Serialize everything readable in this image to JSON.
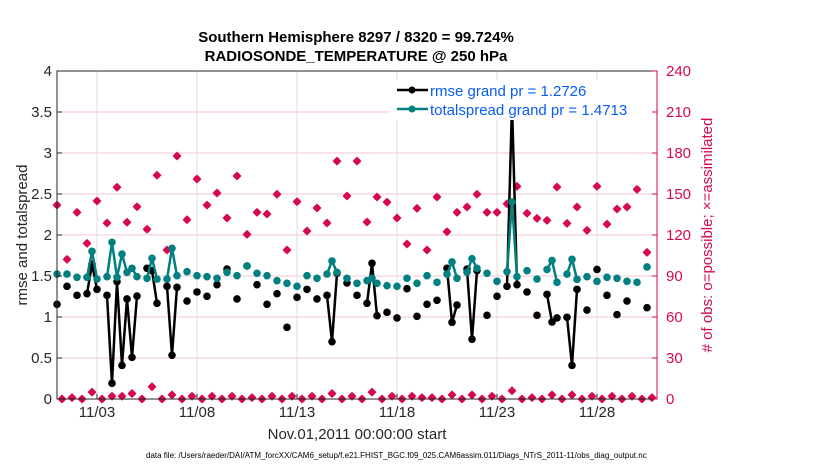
{
  "chart_data": {
    "type": "line",
    "title": [
      "Southern Hemisphere 8297 / 8320 = 99.724%",
      "RADIOSONDE_TEMPERATURE @ 250 hPa"
    ],
    "xlabel": "Nov.01,2011 00:00:00 start",
    "ylabel": "rmse and totalspread",
    "y2label": "# of obs: o=possible; ×=assimilated",
    "footer": "data file: /Users/raeder/DAI/ATM_forcXX/CAM6_setup/f.e21.FHIST_BGC.f09_025.CAM6assim.011/Diags_NTrS_2011-11/obs_diag_output.nc",
    "xlim_days": [
      0,
      30
    ],
    "ylim": [
      0,
      4
    ],
    "y2lim": [
      0,
      240
    ],
    "xticks": [
      {
        "day": 2,
        "label": "11/03"
      },
      {
        "day": 7,
        "label": "11/08"
      },
      {
        "day": 12,
        "label": "11/13"
      },
      {
        "day": 17,
        "label": "11/18"
      },
      {
        "day": 22,
        "label": "11/23"
      },
      {
        "day": 27,
        "label": "11/28"
      }
    ],
    "yticks": [
      "0",
      "0.5",
      "1",
      "1.5",
      "2",
      "2.5",
      "3",
      "3.5",
      "4"
    ],
    "y2ticks": [
      "0",
      "30",
      "60",
      "90",
      "120",
      "150",
      "180",
      "210",
      "240"
    ],
    "legend": {
      "placement": "top-right",
      "entries": [
        "rmse grand pr = 1.2726",
        "totalspread grand pr = 1.4713"
      ]
    },
    "colors": {
      "rmse": "#000000",
      "spread": "#008080",
      "obs": "#d6094f",
      "legend_text": "#0a5cf5"
    },
    "series": [
      {
        "name": "rmse",
        "points": [
          [
            0,
            1.155
          ],
          [
            0.5,
            1.374
          ],
          [
            1,
            1.264
          ],
          [
            1.5,
            1.284
          ],
          [
            1.75,
            1.646
          ],
          [
            2,
            1.337
          ],
          [
            2.5,
            1.264
          ],
          [
            2.75,
            0.191
          ],
          [
            3,
            1.431
          ],
          [
            3.25,
            0.41
          ],
          [
            3.5,
            1.22
          ],
          [
            3.75,
            0.508
          ],
          [
            4,
            1.256
          ],
          [
            4.5,
            1.594
          ],
          [
            4.75,
            1.565
          ],
          [
            5,
            1.167
          ],
          [
            5.5,
            1.374
          ],
          [
            5.75,
            0.533
          ],
          [
            6,
            1.362
          ],
          [
            6.5,
            1.195
          ],
          [
            7,
            1.305
          ],
          [
            7.5,
            1.253
          ],
          [
            8,
            1.394
          ],
          [
            8.5,
            1.585
          ],
          [
            9,
            1.22
          ],
          [
            9.5,
            1.622
          ],
          [
            10,
            1.394
          ],
          [
            10.5,
            1.155
          ],
          [
            11,
            1.284
          ],
          [
            11.5,
            0.874
          ],
          [
            12,
            1.24
          ],
          [
            12.5,
            1.337
          ],
          [
            13,
            1.22
          ],
          [
            13.5,
            1.264
          ],
          [
            13.75,
            0.699
          ],
          [
            14,
            1.533
          ],
          [
            14.5,
            1.415
          ],
          [
            15,
            1.264
          ],
          [
            15.5,
            1.167
          ],
          [
            15.75,
            1.655
          ],
          [
            16,
            1.016
          ],
          [
            16.5,
            1.057
          ],
          [
            17,
            0.988
          ],
          [
            17.5,
            1.345
          ],
          [
            18,
            1.008
          ],
          [
            18.5,
            1.155
          ],
          [
            19,
            1.204
          ],
          [
            19.5,
            1.594
          ],
          [
            19.75,
            0.935
          ],
          [
            20,
            1.146
          ],
          [
            20.5,
            1.585
          ],
          [
            20.75,
            0.728
          ],
          [
            21,
            1.565
          ],
          [
            21.5,
            1.02
          ],
          [
            22,
            1.253
          ],
          [
            22.5,
            1.374
          ],
          [
            22.75,
            3.598
          ],
          [
            23,
            1.394
          ],
          [
            23.5,
            1.305
          ],
          [
            24,
            1.02
          ],
          [
            24.5,
            1.276
          ],
          [
            24.75,
            0.939
          ],
          [
            25,
            0.988
          ],
          [
            25.5,
            0.996
          ],
          [
            25.75,
            0.41
          ],
          [
            26,
            1.337
          ],
          [
            26.5,
            1.085
          ],
          [
            27,
            1.58
          ],
          [
            27.5,
            1.264
          ],
          [
            28,
            1.029
          ],
          [
            28.5,
            1.195
          ],
          [
            29.5,
            1.114
          ]
        ]
      },
      {
        "name": "totalspread",
        "points": [
          [
            0,
            1.524
          ],
          [
            0.5,
            1.524
          ],
          [
            1,
            1.484
          ],
          [
            1.5,
            1.484
          ],
          [
            1.75,
            1.801
          ],
          [
            2,
            1.463
          ],
          [
            2.5,
            1.492
          ],
          [
            2.75,
            1.911
          ],
          [
            3,
            1.484
          ],
          [
            3.25,
            1.768
          ],
          [
            3.5,
            1.545
          ],
          [
            3.75,
            1.594
          ],
          [
            4,
            1.492
          ],
          [
            4.5,
            1.472
          ],
          [
            4.75,
            1.716
          ],
          [
            5,
            1.463
          ],
          [
            5.5,
            1.463
          ],
          [
            5.75,
            1.838
          ],
          [
            6,
            1.504
          ],
          [
            6.5,
            1.553
          ],
          [
            7,
            1.504
          ],
          [
            7.5,
            1.492
          ],
          [
            8,
            1.472
          ],
          [
            8.5,
            1.545
          ],
          [
            9,
            1.504
          ],
          [
            9.5,
            1.622
          ],
          [
            10,
            1.533
          ],
          [
            10.5,
            1.504
          ],
          [
            11,
            1.443
          ],
          [
            11.5,
            1.411
          ],
          [
            12,
            1.374
          ],
          [
            12.5,
            1.504
          ],
          [
            13,
            1.472
          ],
          [
            13.5,
            1.524
          ],
          [
            13.75,
            1.683
          ],
          [
            14,
            1.545
          ],
          [
            14.5,
            1.472
          ],
          [
            15,
            1.411
          ],
          [
            15.5,
            1.443
          ],
          [
            15.75,
            1.472
          ],
          [
            16,
            1.411
          ],
          [
            16.5,
            1.382
          ],
          [
            17,
            1.374
          ],
          [
            17.5,
            1.472
          ],
          [
            18,
            1.411
          ],
          [
            18.5,
            1.504
          ],
          [
            19,
            1.423
          ],
          [
            19.5,
            1.524
          ],
          [
            19.75,
            1.671
          ],
          [
            20,
            1.472
          ],
          [
            20.5,
            1.545
          ],
          [
            20.75,
            1.711
          ],
          [
            21,
            1.594
          ],
          [
            21.5,
            1.533
          ],
          [
            22,
            1.435
          ],
          [
            22.5,
            1.553
          ],
          [
            22.75,
            2.402
          ],
          [
            23,
            1.492
          ],
          [
            23.5,
            1.565
          ],
          [
            24,
            1.463
          ],
          [
            24.5,
            1.58
          ],
          [
            24.75,
            1.69
          ],
          [
            25,
            1.423
          ],
          [
            25.5,
            1.524
          ],
          [
            25.75,
            1.703
          ],
          [
            26,
            1.459
          ],
          [
            26.5,
            1.492
          ],
          [
            27,
            1.435
          ],
          [
            27.5,
            1.484
          ],
          [
            28,
            1.472
          ],
          [
            28.5,
            1.435
          ],
          [
            29,
            1.423
          ],
          [
            29.5,
            1.61
          ]
        ]
      },
      {
        "name": "obs_count",
        "points": [
          [
            0,
            141.9
          ],
          [
            0.5,
            102.2
          ],
          [
            1,
            136.6
          ],
          [
            1.5,
            113.9
          ],
          [
            2,
            144.9
          ],
          [
            2.5,
            128.8
          ],
          [
            3,
            154.9
          ],
          [
            3.5,
            129.3
          ],
          [
            4,
            140.7
          ],
          [
            4.5,
            124.2
          ],
          [
            5,
            163.7
          ],
          [
            5.5,
            109
          ],
          [
            6,
            177.8
          ],
          [
            6.5,
            131.2
          ],
          [
            7,
            161
          ],
          [
            7.5,
            141.9
          ],
          [
            8,
            150.7
          ],
          [
            8.5,
            132.4
          ],
          [
            9,
            163.2
          ],
          [
            9.5,
            120.5
          ],
          [
            10,
            136.6
          ],
          [
            10.5,
            135.4
          ],
          [
            11,
            149.8
          ],
          [
            11.5,
            109
          ],
          [
            12,
            144.4
          ],
          [
            12.5,
            122.9
          ],
          [
            13,
            139.8
          ],
          [
            13.5,
            128.8
          ],
          [
            14,
            174.1
          ],
          [
            14.5,
            148.5
          ],
          [
            15,
            174.1
          ],
          [
            15.5,
            129.5
          ],
          [
            16,
            147.8
          ],
          [
            16.5,
            144.1
          ],
          [
            17,
            132.4
          ],
          [
            17.5,
            113.4
          ],
          [
            18,
            139.5
          ],
          [
            18.5,
            109
          ],
          [
            19,
            147.8
          ],
          [
            19.5,
            122.4
          ],
          [
            20,
            136.6
          ],
          [
            20.5,
            140.5
          ],
          [
            21,
            149.8
          ],
          [
            21.5,
            136.6
          ],
          [
            22,
            136.6
          ],
          [
            22.5,
            142.9
          ],
          [
            23,
            155.6
          ],
          [
            23.5,
            135.9
          ],
          [
            24,
            132.2
          ],
          [
            24.5,
            130.7
          ],
          [
            25,
            155.1
          ],
          [
            25.5,
            128.5
          ],
          [
            26,
            140.5
          ],
          [
            26.5,
            123.4
          ],
          [
            27,
            155.6
          ],
          [
            27.5,
            128
          ],
          [
            28,
            139
          ],
          [
            28.5,
            140.5
          ],
          [
            29,
            153.4
          ],
          [
            29.5,
            107.3
          ]
        ]
      },
      {
        "name": "obs_count_offhours",
        "points": [
          [
            0.25,
            0
          ],
          [
            0.75,
            1
          ],
          [
            1.25,
            0
          ],
          [
            1.75,
            5
          ],
          [
            2.25,
            0
          ],
          [
            2.75,
            2
          ],
          [
            3.25,
            2
          ],
          [
            3.75,
            4
          ],
          [
            4.25,
            0
          ],
          [
            4.75,
            9
          ],
          [
            5.25,
            0
          ],
          [
            5.75,
            3
          ],
          [
            6.25,
            0
          ],
          [
            6.75,
            2
          ],
          [
            7.25,
            0
          ],
          [
            7.75,
            2
          ],
          [
            8.25,
            0
          ],
          [
            8.75,
            2
          ],
          [
            9.25,
            0
          ],
          [
            9.75,
            1
          ],
          [
            10.25,
            0
          ],
          [
            10.75,
            2
          ],
          [
            11.25,
            0
          ],
          [
            11.75,
            2
          ],
          [
            12.25,
            0
          ],
          [
            12.75,
            2
          ],
          [
            13.25,
            0
          ],
          [
            13.75,
            4
          ],
          [
            14.25,
            0
          ],
          [
            14.75,
            2
          ],
          [
            15.25,
            0
          ],
          [
            15.75,
            5
          ],
          [
            16.25,
            0
          ],
          [
            16.75,
            2
          ],
          [
            17.25,
            0
          ],
          [
            17.75,
            2
          ],
          [
            18.25,
            1
          ],
          [
            18.75,
            1
          ],
          [
            19.25,
            0
          ],
          [
            19.75,
            3
          ],
          [
            20.25,
            0
          ],
          [
            20.75,
            3
          ],
          [
            21.25,
            0
          ],
          [
            21.75,
            2
          ],
          [
            22.25,
            0
          ],
          [
            22.75,
            6
          ],
          [
            23.25,
            0
          ],
          [
            23.75,
            1
          ],
          [
            24.25,
            0
          ],
          [
            24.75,
            3
          ],
          [
            25.25,
            0
          ],
          [
            25.75,
            3
          ],
          [
            26.25,
            0
          ],
          [
            26.75,
            2
          ],
          [
            27.25,
            0
          ],
          [
            27.75,
            2
          ],
          [
            28.25,
            0
          ],
          [
            28.75,
            2
          ],
          [
            29.25,
            0
          ],
          [
            29.75,
            1
          ]
        ]
      }
    ]
  }
}
